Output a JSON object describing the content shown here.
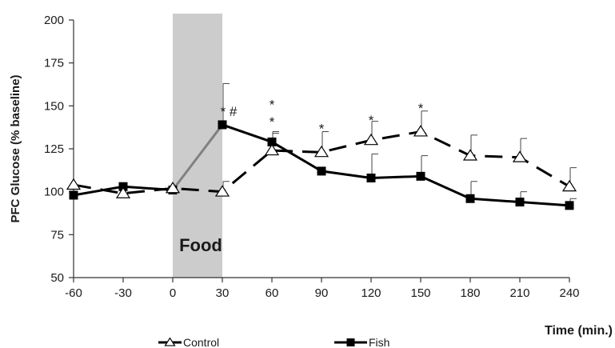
{
  "chart_data": {
    "type": "line",
    "ylabel": "PFC Glucose (% baseline)",
    "xlabel": "Time (min.)",
    "x": [
      -60,
      -30,
      0,
      30,
      60,
      90,
      120,
      150,
      180,
      210,
      240
    ],
    "x_ticks": [
      "-60",
      "-30",
      "0",
      "30",
      "60",
      "90",
      "120",
      "150",
      "180",
      "210",
      "240"
    ],
    "y_ticks": [
      "50",
      "75",
      "100",
      "125",
      "150",
      "175",
      "200"
    ],
    "ylim": [
      50,
      200
    ],
    "xlim": [
      -60,
      240
    ],
    "shaded_region": {
      "x_start": 0,
      "x_end": 30,
      "label": "Food",
      "color": "#cccccc"
    },
    "series": [
      {
        "name": "Control",
        "marker": "open-triangle",
        "line_style": "dashed",
        "color": "#000000",
        "values": [
          104,
          99,
          102,
          100,
          124,
          123,
          130,
          135,
          121,
          120,
          103
        ],
        "errors": [
          0,
          0,
          0,
          6,
          10,
          12,
          11,
          12,
          12,
          11,
          11
        ]
      },
      {
        "name": "Fish",
        "marker": "filled-square",
        "line_style": "solid",
        "color": "#000000",
        "highlight_color": "#808080",
        "values": [
          98,
          103,
          101,
          139,
          129,
          112,
          108,
          109,
          96,
          94,
          92
        ],
        "errors": [
          0,
          0,
          0,
          24,
          6,
          0,
          14,
          12,
          10,
          6,
          4
        ]
      }
    ],
    "annotations": [
      {
        "x": 30,
        "y": 144,
        "text": "* #"
      },
      {
        "x": 60,
        "y": 148,
        "text": "*"
      },
      {
        "x": 60,
        "y": 138,
        "text": "*"
      },
      {
        "x": 90,
        "y": 134,
        "text": "*"
      },
      {
        "x": 120,
        "y": 139,
        "text": "*"
      },
      {
        "x": 150,
        "y": 146,
        "text": "*"
      }
    ],
    "legend": {
      "placement": "bottom",
      "entries": [
        "Control",
        "Fish"
      ]
    },
    "grid": false
  }
}
